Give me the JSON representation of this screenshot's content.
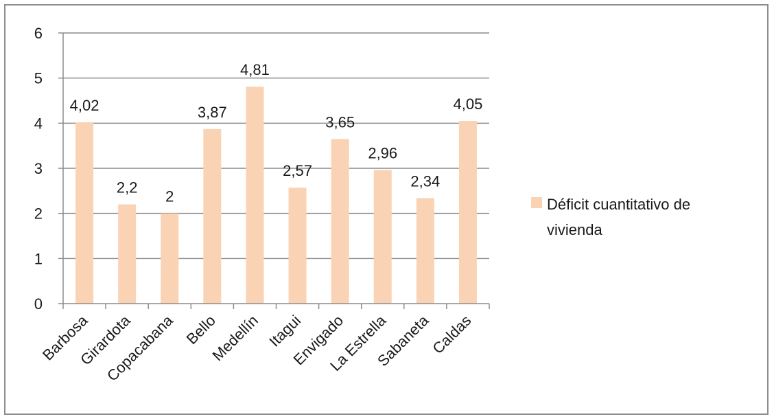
{
  "chart_data": {
    "type": "bar",
    "title": "",
    "xlabel": "",
    "ylabel": "",
    "categories": [
      "Barbosa",
      "Girardota",
      "Copacabana",
      "Bello",
      "Medellín",
      "Itagui",
      "Envigado",
      "La Estrella",
      "Sabaneta",
      "Caldas"
    ],
    "series": [
      {
        "name": "Déficit cuantitativo de vivienda",
        "values": [
          4.02,
          2.2,
          2,
          3.87,
          4.81,
          2.57,
          3.65,
          2.96,
          2.34,
          4.05
        ],
        "labels": [
          "4,02",
          "2,2",
          "2",
          "3,87",
          "4,81",
          "2,57",
          "3,65",
          "2,96",
          "2,34",
          "4,05"
        ]
      }
    ],
    "ylim": [
      0,
      6
    ],
    "yticks": [
      0,
      1,
      2,
      3,
      4,
      5,
      6
    ],
    "grid": true,
    "legend": "right",
    "legend_lines": [
      "Déficit cuantitativo de",
      "vivienda"
    ],
    "colors": {
      "bar": "#FAD3B5",
      "grid": "#8c8c8c",
      "axis": "#8c8c8c",
      "frame": "#8c8c8c"
    }
  }
}
